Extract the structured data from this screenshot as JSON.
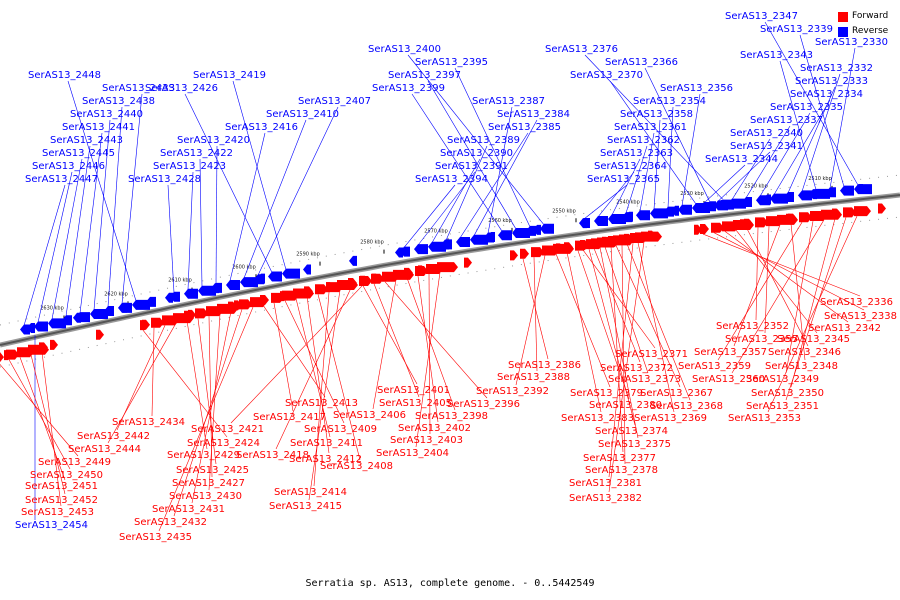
{
  "legend": {
    "items": [
      {
        "label": "Forward",
        "color": "#ff0000"
      },
      {
        "label": "Reverse",
        "color": "#0000ff"
      }
    ]
  },
  "caption": "Serratia sp. AS13, complete genome. - 0..5442549",
  "scale_labels": [
    "2510 kbp",
    "2520 kbp",
    "2530 kbp",
    "2540 kbp",
    "2550 kbp",
    "2560 kbp",
    "2570 kbp",
    "2580 kbp",
    "2590 kbp",
    "2600 kbp",
    "2610 kbp",
    "2620 kbp",
    "2630 kbp"
  ],
  "reverse_genes": [
    "SerAS13_2344",
    "SerAS13_2341",
    "SerAS13_2340",
    "SerAS13_2337",
    "SerAS13_2335",
    "SerAS13_2334",
    "SerAS13_2333",
    "SerAS13_2332",
    "SerAS13_2343",
    "SerAS13_2330",
    "SerAS13_2339",
    "SerAS13_2347",
    "SerAS13_2365",
    "SerAS13_2364",
    "SerAS13_2363",
    "SerAS13_2362",
    "SerAS13_2361",
    "SerAS13_2358",
    "SerAS13_2354",
    "SerAS13_2356",
    "SerAS13_2370",
    "SerAS13_2366",
    "SerAS13_2376",
    "SerAS13_2394",
    "SerAS13_2391",
    "SerAS13_2390",
    "SerAS13_2389",
    "SerAS13_2385",
    "SerAS13_2384",
    "SerAS13_2387",
    "SerAS13_2399",
    "SerAS13_2397",
    "SerAS13_2395",
    "SerAS13_2400",
    "SerAS13_2428",
    "SerAS13_2423",
    "SerAS13_2422",
    "SerAS13_2420",
    "SerAS13_2416",
    "SerAS13_2410",
    "SerAS13_2407",
    "SerAS13_2426",
    "SerAS13_2419",
    "SerAS13_2447",
    "SerAS13_2446",
    "SerAS13_2445",
    "SerAS13_2443",
    "SerAS13_2441",
    "SerAS13_2440",
    "SerAS13_2438",
    "SerAS13_2433",
    "SerAS13_2448",
    "SerAS13_2454"
  ],
  "forward_genes": [
    "SerAS13_2336",
    "SerAS13_2338",
    "SerAS13_2342",
    "SerAS13_2345",
    "SerAS13_2346",
    "SerAS13_2352",
    "SerAS13_2355",
    "SerAS13_2357",
    "SerAS13_2348",
    "SerAS13_2359",
    "SerAS13_2349",
    "SerAS13_2360",
    "SerAS13_2350",
    "SerAS13_2351",
    "SerAS13_2353",
    "SerAS13_2371",
    "SerAS13_2372",
    "SerAS13_2373",
    "SerAS13_2367",
    "SerAS13_2368",
    "SerAS13_2369",
    "SerAS13_2386",
    "SerAS13_2388",
    "SerAS13_2392",
    "SerAS13_2379",
    "SerAS13_2383",
    "SerAS13_2380",
    "SerAS13_2374",
    "SerAS13_2375",
    "SerAS13_2377",
    "SerAS13_2378",
    "SerAS13_2381",
    "SerAS13_2382",
    "SerAS13_2401",
    "SerAS13_2405",
    "SerAS13_2396",
    "SerAS13_2406",
    "SerAS13_2398",
    "SerAS13_2402",
    "SerAS13_2403",
    "SerAS13_2404",
    "SerAS13_2413",
    "SerAS13_2417",
    "SerAS13_2409",
    "SerAS13_2411",
    "SerAS13_2412",
    "SerAS13_2408",
    "SerAS13_2414",
    "SerAS13_2415",
    "SerAS13_2418",
    "SerAS13_2421",
    "SerAS13_2424",
    "SerAS13_2434",
    "SerAS13_2442",
    "SerAS13_2444",
    "SerAS13_2429",
    "SerAS13_2425",
    "SerAS13_2427",
    "SerAS13_2430",
    "SerAS13_2431",
    "SerAS13_2432",
    "SerAS13_2435",
    "SerAS13_2449",
    "SerAS13_2450",
    "SerAS13_2451",
    "SerAS13_2452",
    "SerAS13_2453"
  ]
}
